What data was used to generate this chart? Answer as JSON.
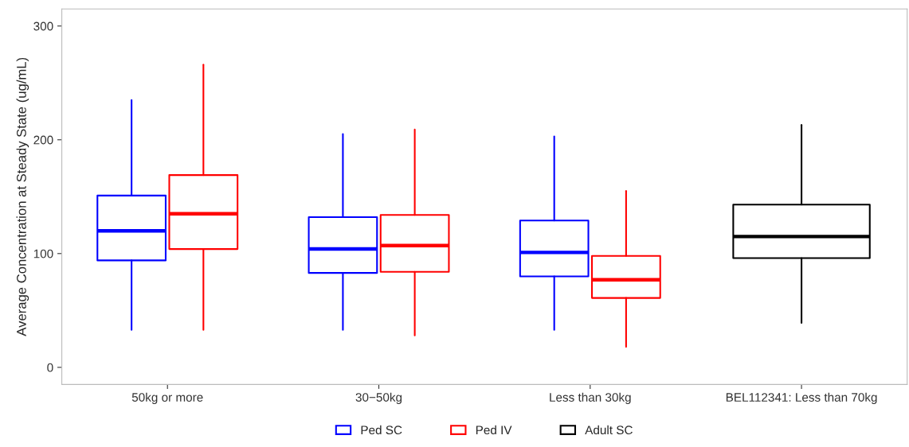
{
  "chart_data": {
    "type": "box",
    "ylabel": "Average Concentration at Steady State (ug/mL)",
    "categories": [
      "50kg or more",
      "30−50kg",
      "Less than 30kg",
      "BEL112341: Less than 70kg"
    ],
    "series": [
      {
        "name": "Ped SC",
        "color": "#0000ff",
        "boxes": [
          {
            "low": 33,
            "q1": 94,
            "median": 120,
            "q3": 151,
            "high": 235
          },
          {
            "low": 33,
            "q1": 83,
            "median": 104,
            "q3": 132,
            "high": 205
          },
          {
            "low": 33,
            "q1": 80,
            "median": 101,
            "q3": 129,
            "high": 203
          },
          null
        ]
      },
      {
        "name": "Ped IV",
        "color": "#ff0000",
        "boxes": [
          {
            "low": 33,
            "q1": 104,
            "median": 135,
            "q3": 169,
            "high": 266
          },
          {
            "low": 28,
            "q1": 84,
            "median": 107,
            "q3": 134,
            "high": 209
          },
          {
            "low": 18,
            "q1": 61,
            "median": 77,
            "q3": 98,
            "high": 155
          },
          null
        ]
      },
      {
        "name": "Adult SC",
        "color": "#000000",
        "boxes": [
          null,
          null,
          null,
          {
            "low": 39,
            "q1": 96,
            "median": 115,
            "q3": 143,
            "high": 213
          }
        ]
      }
    ],
    "ylim": [
      -15,
      315
    ],
    "yticks": [
      0,
      100,
      200,
      300
    ],
    "grid": false,
    "legend": "bottom"
  }
}
